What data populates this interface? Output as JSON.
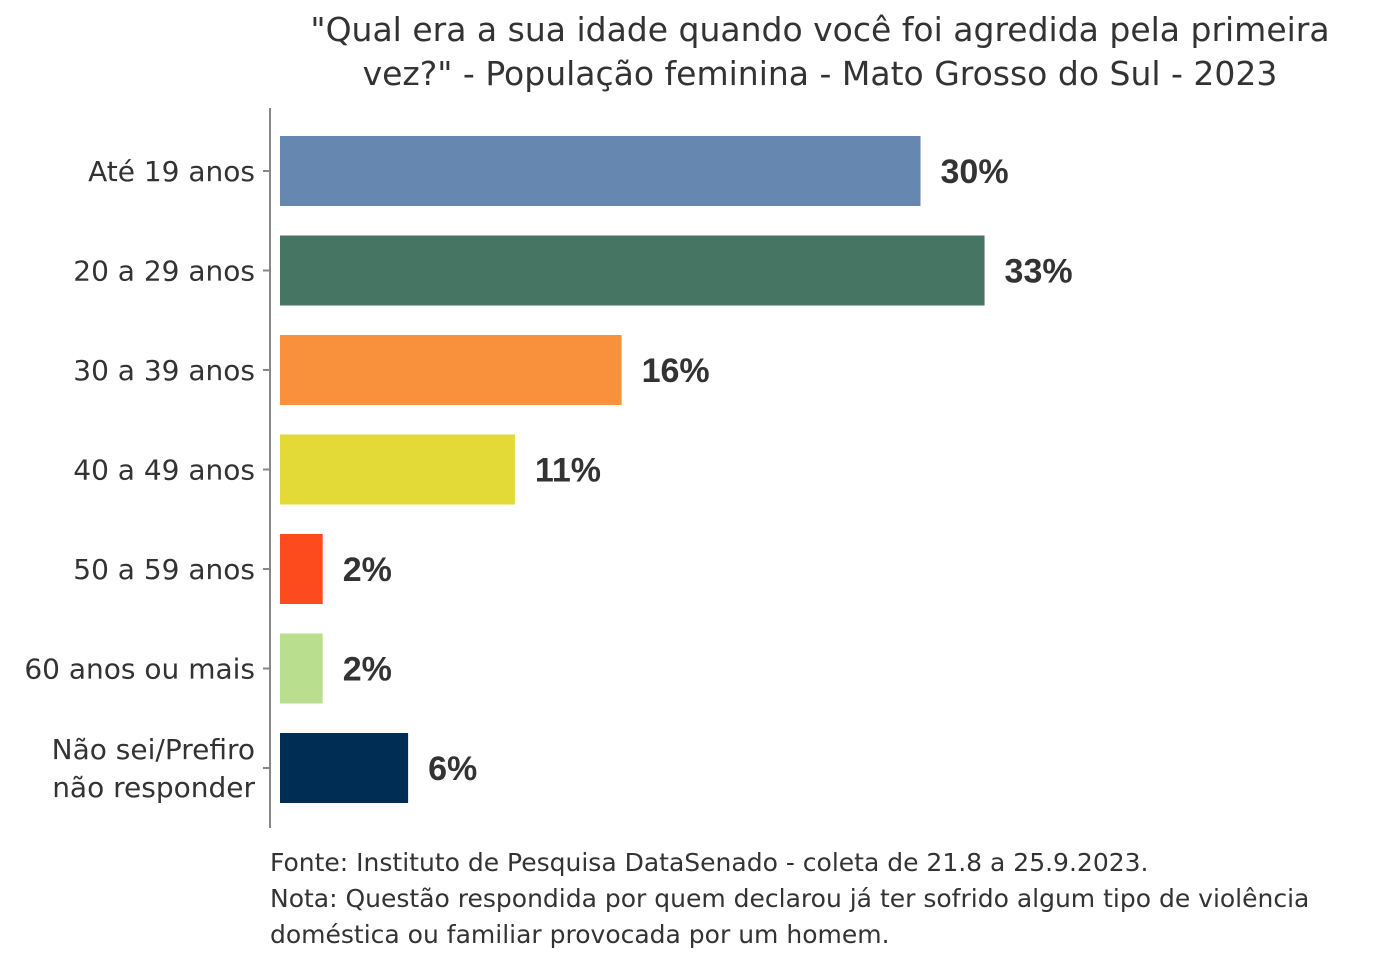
{
  "chart_data": {
    "type": "bar",
    "orientation": "horizontal",
    "title_lines": [
      "\"Qual era a sua idade quando você foi agredida pela primeira",
      "vez?\" - População feminina - Mato Grosso do Sul - 2023"
    ],
    "categories": [
      [
        "Até 19 anos"
      ],
      [
        "20 a 29 anos"
      ],
      [
        "30 a 39 anos"
      ],
      [
        "40 a 49 anos"
      ],
      [
        "50 a 59 anos"
      ],
      [
        "60 anos ou mais"
      ],
      [
        "Não sei/Prefiro",
        "não responder"
      ]
    ],
    "values": [
      30,
      33,
      16,
      11,
      2,
      2,
      6
    ],
    "value_labels": [
      "30%",
      "33%",
      "16%",
      "11%",
      "2%",
      "2%",
      "6%"
    ],
    "colors": [
      "#6688b0",
      "#467563",
      "#f9913c",
      "#e3d937",
      "#fe4b1e",
      "#b9de8e",
      "#002d53"
    ],
    "xlim": [
      0,
      35
    ],
    "grid": false
  },
  "footer": {
    "source": "Fonte: Instituto de Pesquisa DataSenado - coleta de 21.8 a 25.9.2023.",
    "note_line1": "Nota: Questão respondida por quem declarou já ter sofrido algum tipo de violência",
    "note_line2": "doméstica ou familiar provocada por um homem."
  }
}
